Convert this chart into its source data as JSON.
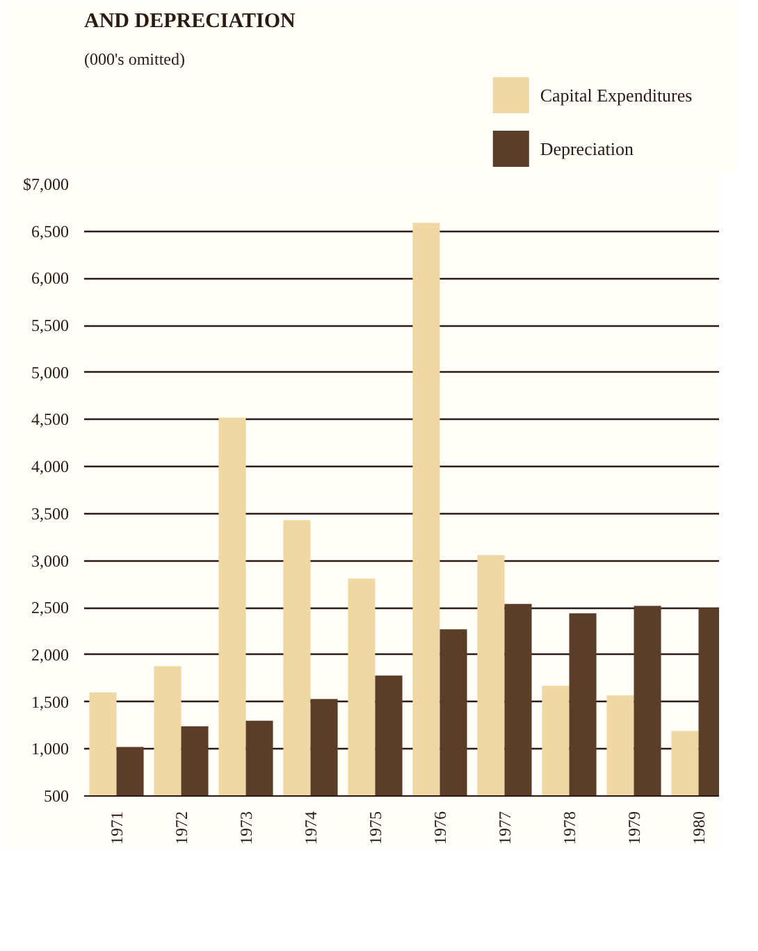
{
  "chart_data": {
    "type": "bar",
    "title": "AND DEPRECIATION",
    "subtitle": "(000's omitted)",
    "categories": [
      "1971",
      "1972",
      "1973",
      "1974",
      "1975",
      "1976",
      "1977",
      "1978",
      "1979",
      "1980"
    ],
    "series": [
      {
        "name": "Capital Expenditures",
        "color": "#f0d8a4",
        "values": [
          1600,
          1880,
          4520,
          3430,
          2810,
          6590,
          3060,
          1670,
          1570,
          1190
        ]
      },
      {
        "name": "Depreciation",
        "color": "#5a3e28",
        "values": [
          1020,
          1240,
          1300,
          1530,
          1780,
          2270,
          2540,
          2440,
          2520,
          2500
        ]
      }
    ],
    "ylim": [
      500,
      7000
    ],
    "yticks": [
      500,
      {
        "value": 1000,
        "label": "1,000"
      },
      {
        "value": 1500,
        "label": "1,500"
      },
      {
        "value": 2000,
        "label": "2,000"
      },
      {
        "value": 2500,
        "label": "2,500"
      },
      {
        "value": 3000,
        "label": "3,000"
      },
      {
        "value": 3500,
        "label": "3,500"
      },
      {
        "value": 4000,
        "label": "4,000"
      },
      {
        "value": 4500,
        "label": "4,500"
      },
      {
        "value": 5000,
        "label": "5,000"
      },
      {
        "value": 5500,
        "label": "5,500"
      },
      {
        "value": 6000,
        "label": "6,000"
      },
      {
        "value": 6500,
        "label": "6,500"
      },
      {
        "value": 7000,
        "label": "$7,000"
      }
    ],
    "grid": "y",
    "legend": "top right"
  }
}
